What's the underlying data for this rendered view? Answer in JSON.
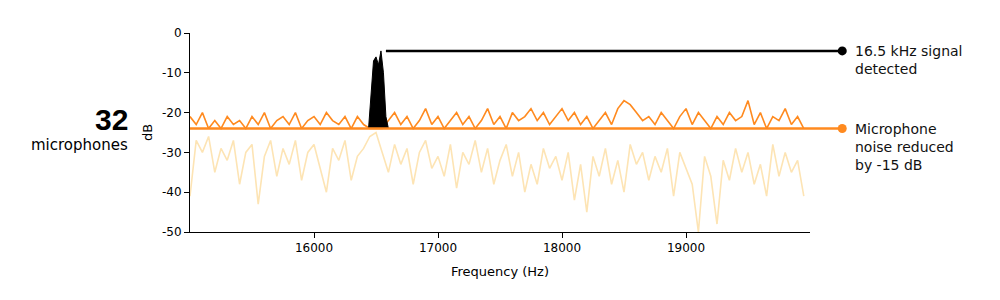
{
  "chart_data": {
    "type": "line",
    "side_label": {
      "count": 32,
      "label": "microphones"
    },
    "x_label": "Frequency (Hz)",
    "y_label": "dB",
    "xlim": [
      15000,
      20000
    ],
    "xticks": [
      16000,
      17000,
      18000,
      19000
    ],
    "ylim": [
      -50,
      0
    ],
    "yticks": [
      -50,
      -40,
      -30,
      -20,
      -10,
      0
    ],
    "grid": false,
    "x": [
      15000,
      15050,
      15100,
      15150,
      15200,
      15250,
      15300,
      15350,
      15400,
      15450,
      15500,
      15550,
      15600,
      15650,
      15700,
      15750,
      15800,
      15850,
      15900,
      15950,
      16000,
      16050,
      16100,
      16150,
      16200,
      16250,
      16300,
      16350,
      16400,
      16450,
      16500,
      16550,
      16600,
      16650,
      16700,
      16750,
      16800,
      16850,
      16900,
      16950,
      17000,
      17050,
      17100,
      17150,
      17200,
      17250,
      17300,
      17350,
      17400,
      17450,
      17500,
      17550,
      17600,
      17650,
      17700,
      17750,
      17800,
      17850,
      17900,
      17950,
      18000,
      18050,
      18100,
      18150,
      18200,
      18250,
      18300,
      18350,
      18400,
      18450,
      18500,
      18550,
      18600,
      18650,
      18700,
      18750,
      18800,
      18850,
      18900,
      18950,
      19000,
      19050,
      19100,
      19150,
      19200,
      19250,
      19300,
      19350,
      19400,
      19450,
      19500,
      19550,
      19600,
      19650,
      19700,
      19750,
      19800,
      19850,
      19900,
      19950
    ],
    "series": [
      {
        "color": "#fde4b4",
        "values": [
          -41,
          -27,
          -30,
          -26,
          -35,
          -29,
          -32,
          -27,
          -38,
          -30,
          -28,
          -43,
          -31,
          -27,
          -36,
          -29,
          -33,
          -27,
          -37,
          -30,
          -28,
          -34,
          -40,
          -29,
          -32,
          -27,
          -37,
          -31,
          -29,
          -26,
          -25,
          -30,
          -35,
          -28,
          -33,
          -29,
          -38,
          -30,
          -27,
          -34,
          -31,
          -36,
          -28,
          -39,
          -30,
          -33,
          -27,
          -35,
          -29,
          -38,
          -32,
          -28,
          -36,
          -30,
          -40,
          -33,
          -38,
          -29,
          -34,
          -31,
          -37,
          -30,
          -42,
          -33,
          -45,
          -31,
          -36,
          -29,
          -38,
          -32,
          -40,
          -28,
          -33,
          -30,
          -37,
          -31,
          -35,
          -29,
          -41,
          -30,
          -34,
          -38,
          -50,
          -31,
          -36,
          -48,
          -32,
          -37,
          -29,
          -35,
          -30,
          -38,
          -33,
          -41,
          -28,
          -36,
          -30,
          -35,
          -32,
          -41
        ]
      },
      {
        "color": "#ff8a1f",
        "values": [
          -21,
          -23,
          -20,
          -24,
          -22,
          -24,
          -21,
          -23,
          -22,
          -24,
          -21,
          -23,
          -20,
          -24,
          -22,
          -21,
          -23,
          -20,
          -24,
          -22,
          -21,
          -23,
          -20,
          -22,
          -23,
          -21,
          -24,
          -21,
          -23,
          -24,
          -24,
          -24,
          -22,
          -20,
          -23,
          -21,
          -24,
          -22,
          -19,
          -23,
          -21,
          -24,
          -22,
          -20,
          -23,
          -21,
          -24,
          -22,
          -19,
          -23,
          -21,
          -24,
          -20,
          -22,
          -21,
          -19,
          -22,
          -20,
          -23,
          -21,
          -19,
          -22,
          -20,
          -23,
          -21,
          -24,
          -22,
          -20,
          -23,
          -19,
          -17,
          -18,
          -20,
          -22,
          -21,
          -23,
          -20,
          -22,
          -24,
          -21,
          -19,
          -23,
          -20,
          -22,
          -24,
          -21,
          -23,
          -20,
          -22,
          -21,
          -17,
          -23,
          -20,
          -24,
          -21,
          -22,
          -19,
          -23,
          -21,
          -24
        ]
      },
      {
        "color": "#000000",
        "type": "area",
        "x": [
          16440,
          16460,
          16480,
          16500,
          16520,
          16540,
          16560,
          16580,
          16600
        ],
        "values": [
          -24,
          -14,
          -7,
          -6,
          -8,
          -4.5,
          -10,
          -21,
          -24
        ]
      }
    ],
    "annotations": [
      {
        "lines": [
          "16.5 kHz signal",
          "detected"
        ],
        "x": 16580,
        "y": -4.5,
        "color": "#000000"
      },
      {
        "lines": [
          "Microphone",
          "noise reduced",
          "by -15 dB"
        ],
        "x": 15000,
        "y": -24,
        "color": "#ff8a1f"
      }
    ]
  }
}
